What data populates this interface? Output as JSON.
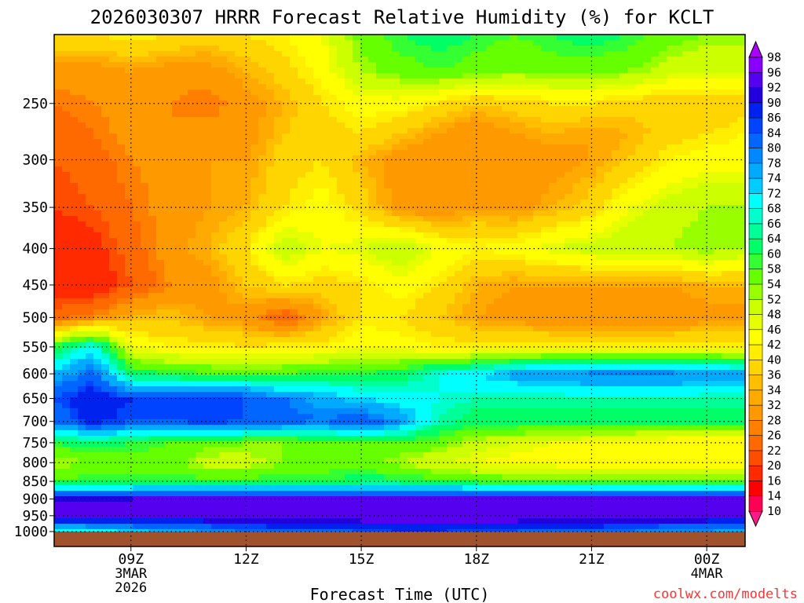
{
  "chart_data": {
    "type": "heatmap",
    "title": "2026030307 HRRR Forecast Relative Humidity (%) for KCLT",
    "xlabel": "Forecast Time (UTC)",
    "ylabel": "",
    "x_ticks": [
      {
        "label": "09Z",
        "sub": [
          "3MAR",
          "2026"
        ],
        "hour": 9
      },
      {
        "label": "12Z",
        "sub": [],
        "hour": 12
      },
      {
        "label": "15Z",
        "sub": [],
        "hour": 15
      },
      {
        "label": "18Z",
        "sub": [],
        "hour": 18
      },
      {
        "label": "21Z",
        "sub": [],
        "hour": 21
      },
      {
        "label": "00Z",
        "sub": [
          "4MAR"
        ],
        "hour": 24
      }
    ],
    "xlim_hours": [
      7,
      25
    ],
    "y_ticks": [
      250,
      300,
      350,
      400,
      450,
      500,
      550,
      600,
      650,
      700,
      750,
      800,
      850,
      900,
      950,
      1000
    ],
    "ylim_hpa": [
      200,
      1000
    ],
    "yscale": "log",
    "grid": true,
    "colorbar": {
      "levels": [
        10,
        14,
        16,
        20,
        22,
        26,
        28,
        32,
        34,
        36,
        40,
        42,
        46,
        48,
        52,
        54,
        58,
        60,
        64,
        66,
        68,
        72,
        74,
        78,
        80,
        84,
        86,
        90,
        92,
        96,
        98
      ],
      "colors": [
        "#ff1a8c",
        "#ff0055",
        "#ff0000",
        "#ff2a00",
        "#ff4d00",
        "#ff6a00",
        "#ff8000",
        "#ff9900",
        "#ffaa00",
        "#ffbf00",
        "#ffd500",
        "#ffee00",
        "#ffff00",
        "#e6ff00",
        "#ccff00",
        "#99ff00",
        "#66ff00",
        "#33ff33",
        "#00ff66",
        "#00ff99",
        "#00ffcc",
        "#00ffff",
        "#00ccff",
        "#00aaff",
        "#0088ff",
        "#0066ff",
        "#0044ff",
        "#0022ee",
        "#2200dd",
        "#5500ee",
        "#8800ff",
        "#aa00ff"
      ],
      "placement": "right"
    },
    "rh_grid": {
      "hours": [
        7,
        8,
        9,
        10,
        11,
        12,
        13,
        14,
        15,
        16,
        17,
        18,
        19,
        20,
        21,
        22,
        23,
        24,
        25
      ],
      "pressure_hpa": [
        200,
        225,
        250,
        275,
        300,
        350,
        400,
        450,
        500,
        550,
        600,
        650,
        700,
        750,
        800,
        850,
        900,
        950,
        1000
      ],
      "values": [
        [
          40,
          40,
          42,
          40,
          38,
          40,
          42,
          46,
          56,
          60,
          62,
          60,
          58,
          60,
          62,
          60,
          56,
          54,
          54
        ],
        [
          30,
          30,
          32,
          30,
          30,
          34,
          38,
          44,
          52,
          56,
          58,
          56,
          54,
          56,
          56,
          54,
          50,
          48,
          48
        ],
        [
          26,
          28,
          30,
          28,
          26,
          30,
          34,
          40,
          44,
          44,
          40,
          36,
          38,
          40,
          40,
          38,
          36,
          36,
          38
        ],
        [
          24,
          26,
          30,
          28,
          30,
          30,
          36,
          38,
          40,
          36,
          32,
          28,
          32,
          34,
          32,
          34,
          38,
          40,
          42
        ],
        [
          22,
          24,
          28,
          30,
          32,
          32,
          38,
          40,
          34,
          30,
          28,
          30,
          28,
          30,
          32,
          36,
          42,
          44,
          44
        ],
        [
          20,
          22,
          26,
          30,
          32,
          34,
          40,
          44,
          38,
          30,
          28,
          32,
          30,
          34,
          38,
          46,
          50,
          52,
          52
        ],
        [
          16,
          18,
          24,
          30,
          34,
          40,
          52,
          46,
          48,
          52,
          46,
          42,
          44,
          48,
          50,
          52,
          52,
          54,
          52
        ],
        [
          16,
          16,
          22,
          28,
          30,
          36,
          40,
          38,
          40,
          44,
          40,
          34,
          32,
          32,
          32,
          32,
          32,
          34,
          34
        ],
        [
          24,
          28,
          34,
          36,
          32,
          30,
          22,
          32,
          40,
          40,
          36,
          32,
          30,
          28,
          28,
          28,
          28,
          30,
          30
        ],
        [
          60,
          70,
          46,
          42,
          42,
          40,
          42,
          42,
          46,
          44,
          42,
          42,
          42,
          42,
          42,
          42,
          42,
          42,
          42
        ],
        [
          74,
          82,
          62,
          60,
          58,
          58,
          58,
          60,
          60,
          62,
          68,
          72,
          76,
          78,
          80,
          80,
          80,
          78,
          76
        ],
        [
          84,
          90,
          86,
          86,
          86,
          84,
          80,
          76,
          72,
          70,
          68,
          66,
          66,
          66,
          66,
          66,
          66,
          66,
          66
        ],
        [
          80,
          88,
          84,
          84,
          86,
          84,
          82,
          80,
          84,
          78,
          66,
          62,
          62,
          62,
          62,
          62,
          62,
          62,
          62
        ],
        [
          60,
          62,
          60,
          58,
          56,
          54,
          54,
          56,
          58,
          58,
          56,
          50,
          48,
          46,
          44,
          44,
          42,
          42,
          42
        ],
        [
          52,
          54,
          56,
          56,
          50,
          50,
          54,
          56,
          56,
          52,
          48,
          46,
          44,
          44,
          42,
          42,
          42,
          42,
          42
        ],
        [
          58,
          60,
          60,
          60,
          60,
          60,
          60,
          60,
          62,
          62,
          60,
          58,
          56,
          56,
          56,
          56,
          56,
          56,
          56
        ],
        [
          92,
          92,
          92,
          94,
          94,
          94,
          94,
          94,
          94,
          94,
          94,
          94,
          94,
          94,
          94,
          94,
          94,
          94,
          94
        ],
        [
          96,
          96,
          96,
          96,
          96,
          96,
          96,
          96,
          96,
          96,
          96,
          96,
          96,
          96,
          96,
          96,
          96,
          96,
          96
        ],
        [
          68,
          70,
          72,
          76,
          78,
          80,
          82,
          82,
          84,
          86,
          86,
          84,
          84,
          82,
          82,
          80,
          78,
          78,
          76
        ]
      ]
    },
    "ground_color": "#a0522d"
  },
  "watermark": "coolwx.com/modelts",
  "watermark_color": "#ff3333"
}
